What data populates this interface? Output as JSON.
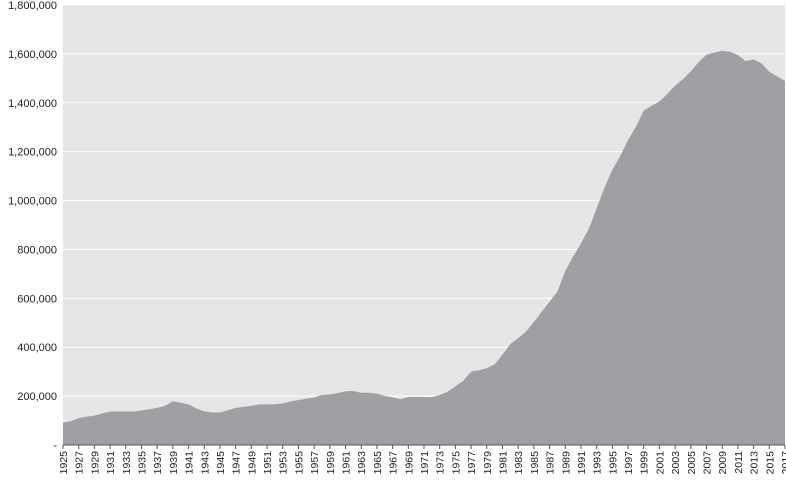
{
  "chart_data": {
    "type": "area",
    "title": "",
    "xlabel": "",
    "ylabel": "",
    "ylim": [
      0,
      1800000
    ],
    "yticks": [
      0,
      200000,
      400000,
      600000,
      800000,
      1000000,
      1200000,
      1400000,
      1600000,
      1800000
    ],
    "ytick_labels": [
      "-",
      "200,000",
      "400,000",
      "600,000",
      "800,000",
      "1,000,000",
      "1,200,000",
      "1,400,000",
      "1,600,000",
      "1,800,000"
    ],
    "xtick_labels": [
      "1925",
      "1927",
      "1929",
      "1931",
      "1933",
      "1935",
      "1937",
      "1939",
      "1941",
      "1943",
      "1945",
      "1947",
      "1949",
      "1951",
      "1953",
      "1955",
      "1957",
      "1959",
      "1961",
      "1963",
      "1965",
      "1967",
      "1969",
      "1971",
      "1973",
      "1975",
      "1977",
      "1979",
      "1981",
      "1983",
      "1985",
      "1987",
      "1989",
      "1991",
      "1993",
      "1995",
      "1997",
      "1999",
      "2001",
      "2003",
      "2005",
      "2007",
      "2009",
      "2011",
      "2013",
      "2015",
      "2017"
    ],
    "grid": true,
    "legend": "none",
    "colors": {
      "area": "#a0a0a4",
      "plot_background": "#e6e6e6",
      "gridline": "#ffffff"
    },
    "x": [
      1925,
      1926,
      1927,
      1928,
      1929,
      1930,
      1931,
      1932,
      1933,
      1934,
      1935,
      1936,
      1937,
      1938,
      1939,
      1940,
      1941,
      1942,
      1943,
      1944,
      1945,
      1946,
      1947,
      1948,
      1949,
      1950,
      1951,
      1952,
      1953,
      1954,
      1955,
      1956,
      1957,
      1958,
      1959,
      1960,
      1961,
      1962,
      1963,
      1964,
      1965,
      1966,
      1967,
      1968,
      1969,
      1970,
      1971,
      1972,
      1973,
      1974,
      1975,
      1976,
      1977,
      1978,
      1979,
      1980,
      1981,
      1982,
      1983,
      1984,
      1985,
      1986,
      1987,
      1988,
      1989,
      1990,
      1991,
      1992,
      1993,
      1994,
      1995,
      1996,
      1997,
      1998,
      1999,
      2000,
      2001,
      2002,
      2003,
      2004,
      2005,
      2006,
      2007,
      2008,
      2009,
      2010,
      2011,
      2012,
      2013,
      2014,
      2015,
      2016,
      2017
    ],
    "series": [
      {
        "values": [
          91000,
          97000,
          110000,
          116000,
          120000,
          129000,
          137000,
          137000,
          137000,
          137000,
          141000,
          146000,
          152000,
          160000,
          179000,
          173000,
          166000,
          149000,
          138000,
          133000,
          133000,
          142000,
          152000,
          156000,
          160000,
          166000,
          166000,
          166000,
          170000,
          178000,
          184000,
          189000,
          195000,
          205000,
          207000,
          212000,
          220000,
          221000,
          214000,
          214000,
          210000,
          201000,
          195000,
          187000,
          196000,
          197000,
          196000,
          196000,
          204000,
          218000,
          240000,
          263000,
          300000,
          306000,
          314000,
          330000,
          369000,
          413000,
          437000,
          464000,
          503000,
          545000,
          586000,
          628000,
          712000,
          771000,
          825000,
          884000,
          969000,
          1053000,
          1126000,
          1182000,
          1247000,
          1302000,
          1368000,
          1388000,
          1405000,
          1436000,
          1470000,
          1497000,
          1528000,
          1567000,
          1597000,
          1605000,
          1613000,
          1609000,
          1595000,
          1570000,
          1578000,
          1561000,
          1527000,
          1508000,
          1489000
        ]
      }
    ]
  }
}
